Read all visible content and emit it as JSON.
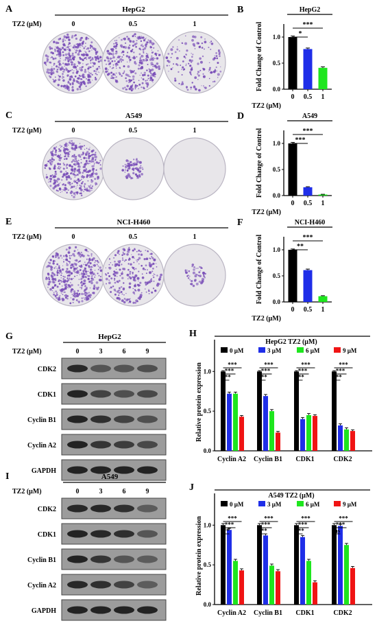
{
  "colors": {
    "black": "#000000",
    "blue": "#1f2ee8",
    "green": "#1ee61e",
    "red": "#f01414",
    "crystal_violet": "#7a4fb8",
    "plate_bg": "#e8e6ea",
    "blot_band": "#1c1c1c",
    "blot_bg": "#9c9c9c"
  },
  "treatment_label": "TZ2 (μM)",
  "colony_panels": [
    {
      "letter": "A",
      "cell_line": "HepG2",
      "doses": [
        "0",
        "0.5",
        "1"
      ],
      "densities": [
        1.0,
        0.75,
        0.35
      ]
    },
    {
      "letter": "C",
      "cell_line": "A549",
      "doses": [
        "0",
        "0.5",
        "1"
      ],
      "densities": [
        1.0,
        0.18,
        0.0
      ]
    },
    {
      "letter": "E",
      "cell_line": "NCI-H460",
      "doses": [
        "0",
        "0.5",
        "1"
      ],
      "densities": [
        1.0,
        0.6,
        0.12
      ]
    }
  ],
  "blot_panels": [
    {
      "letter": "G",
      "cell_line": "HepG2",
      "doses": [
        "0",
        "3",
        "6",
        "9"
      ],
      "proteins": [
        "CDK2",
        "CDK1",
        "Cyclin B1",
        "Cyclin A2",
        "GAPDH"
      ]
    },
    {
      "letter": "I",
      "cell_line": "A549",
      "doses": [
        "0",
        "3",
        "6",
        "9"
      ],
      "proteins": [
        "CDK2",
        "CDK1",
        "Cyclin B1",
        "Cyclin A2",
        "GAPDH"
      ]
    }
  ],
  "chart_data": [
    {
      "panel": "B",
      "type": "bar",
      "title": "HepG2",
      "ylabel": "Fold Change of Control",
      "xlabel": "TZ2 (μM)",
      "categories": [
        "0",
        "0.5",
        "1"
      ],
      "values": [
        1.0,
        0.77,
        0.41
      ],
      "errors": [
        0.02,
        0.02,
        0.02
      ],
      "colors": [
        "#000000",
        "#1f2ee8",
        "#1ee61e"
      ],
      "ylim": [
        0,
        1.25
      ],
      "yticks": [
        "0.0",
        "0.5",
        "1.0"
      ],
      "significance": [
        {
          "from": 0,
          "to": 1,
          "label": "*"
        },
        {
          "from": 0,
          "to": 2,
          "label": "***"
        }
      ]
    },
    {
      "panel": "D",
      "type": "bar",
      "title": "A549",
      "ylabel": "Fold Change of Control",
      "xlabel": "TZ2 (μM)",
      "categories": [
        "0",
        "0.5",
        "1"
      ],
      "values": [
        1.0,
        0.16,
        0.02
      ],
      "errors": [
        0.02,
        0.01,
        0.005
      ],
      "colors": [
        "#000000",
        "#1f2ee8",
        "#1ee61e"
      ],
      "ylim": [
        0,
        1.25
      ],
      "yticks": [
        "0.0",
        "0.5",
        "1.0"
      ],
      "significance": [
        {
          "from": 0,
          "to": 1,
          "label": "***"
        },
        {
          "from": 0,
          "to": 2,
          "label": "***"
        }
      ]
    },
    {
      "panel": "F",
      "type": "bar",
      "title": "NCI-H460",
      "ylabel": "Fold Change of Control",
      "xlabel": "TZ2 (μM)",
      "categories": [
        "0",
        "0.5",
        "1"
      ],
      "values": [
        1.0,
        0.61,
        0.11
      ],
      "errors": [
        0.015,
        0.02,
        0.01
      ],
      "colors": [
        "#000000",
        "#1f2ee8",
        "#1ee61e"
      ],
      "ylim": [
        0,
        1.25
      ],
      "yticks": [
        "0.0",
        "0.5",
        "1.0"
      ],
      "significance": [
        {
          "from": 0,
          "to": 1,
          "label": "**"
        },
        {
          "from": 0,
          "to": 2,
          "label": "***"
        }
      ]
    },
    {
      "panel": "H",
      "type": "bar",
      "title": "HepG2  TZ2 (μM)",
      "ylabel": "Relative protein expression",
      "legend": [
        "0 μM",
        "3 μM",
        "6 μM",
        "9 μM"
      ],
      "colors": [
        "#000000",
        "#1f2ee8",
        "#1ee61e",
        "#f01414"
      ],
      "categories": [
        "Cyclin A2",
        "Cyclin B1",
        "CDK1",
        "CDK2"
      ],
      "series": [
        {
          "name": "0 μM",
          "values": [
            1.0,
            1.0,
            1.0,
            1.0
          ]
        },
        {
          "name": "3 μM",
          "values": [
            0.72,
            0.69,
            0.4,
            0.32
          ]
        },
        {
          "name": "6 μM",
          "values": [
            0.72,
            0.5,
            0.45,
            0.27
          ]
        },
        {
          "name": "9 μM",
          "values": [
            0.43,
            0.23,
            0.44,
            0.25
          ]
        }
      ],
      "errors": [
        0.01,
        0.02,
        0.02,
        0.015
      ],
      "ylim": [
        0,
        1.4
      ],
      "yticks": [
        "0.0",
        "0.5",
        "1.0"
      ],
      "sig_labels": [
        "***",
        "***",
        "***"
      ]
    },
    {
      "panel": "J",
      "type": "bar",
      "title": "A549  TZ2 (μM)",
      "ylabel": "Relative protein expression",
      "legend": [
        "0 μM",
        "3 μM",
        "6 μM",
        "9 μM"
      ],
      "colors": [
        "#000000",
        "#1f2ee8",
        "#1ee61e",
        "#f01414"
      ],
      "categories": [
        "Cyclin A2",
        "Cyclin B1",
        "CDK1",
        "CDK2"
      ],
      "series": [
        {
          "name": "0 μM",
          "values": [
            1.0,
            1.0,
            1.0,
            1.0
          ]
        },
        {
          "name": "3 μM",
          "values": [
            0.94,
            0.87,
            0.85,
            0.99
          ]
        },
        {
          "name": "6 μM",
          "values": [
            0.55,
            0.49,
            0.55,
            0.75
          ]
        },
        {
          "name": "9 μM",
          "values": [
            0.43,
            0.42,
            0.28,
            0.46
          ]
        }
      ],
      "errors": [
        0.02,
        0.02,
        0.02,
        0.02
      ],
      "ylim": [
        0,
        1.4
      ],
      "yticks": [
        "0.0",
        "0.5",
        "1.0"
      ],
      "sig_by_group": [
        [
          "**",
          "***",
          "***"
        ],
        [
          "***",
          "***",
          "***"
        ],
        [
          "***",
          "***",
          "***"
        ],
        [
          "ns",
          "***",
          "***"
        ]
      ]
    }
  ]
}
